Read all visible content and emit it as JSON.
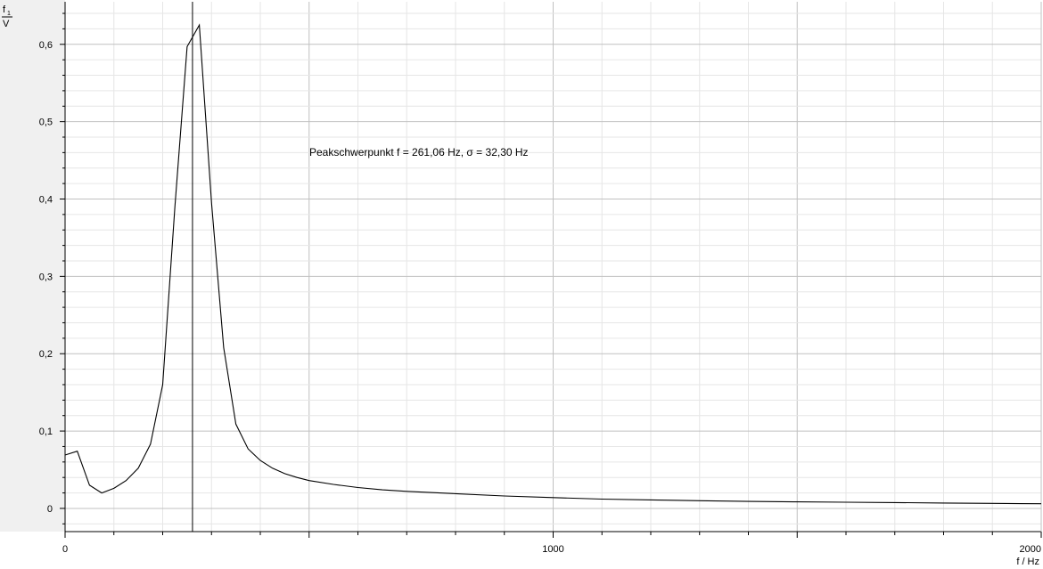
{
  "chart_data": {
    "type": "line",
    "title": "",
    "ylabel": {
      "numerator": "f",
      "subscript": "1",
      "denominator": "V"
    },
    "xlabel": "f / Hz",
    "xlim": [
      0,
      2000
    ],
    "ylim": [
      -0.03,
      0.655
    ],
    "x_ticks": [
      0,
      1000,
      2000
    ],
    "x_tick_labels": [
      "0",
      "1000",
      "2000"
    ],
    "y_ticks": [
      0,
      0.1,
      0.2,
      0.3,
      0.4,
      0.5,
      0.6
    ],
    "y_tick_labels": [
      "0",
      "0,1",
      "0,2",
      "0,3",
      "0,4",
      "0,5",
      "0,6"
    ],
    "grid": true,
    "marker_x": 261.06,
    "annotation": "Peakschwerpunkt f =  261,06 Hz,   σ = 32,30 Hz",
    "series": [
      {
        "x": [
          0,
          25,
          50,
          75,
          100,
          125,
          150,
          175,
          200,
          225,
          250,
          275,
          300,
          325,
          350,
          375,
          400,
          425,
          450,
          475,
          500,
          550,
          600,
          650,
          700,
          800,
          900,
          1000,
          1100,
          1200,
          1300,
          1400,
          1500,
          1600,
          1700,
          1800,
          1900,
          2000
        ],
        "values": [
          0.069,
          0.074,
          0.03,
          0.02,
          0.026,
          0.036,
          0.052,
          0.083,
          0.16,
          0.39,
          0.597,
          0.625,
          0.395,
          0.208,
          0.109,
          0.077,
          0.062,
          0.052,
          0.045,
          0.04,
          0.036,
          0.031,
          0.027,
          0.024,
          0.022,
          0.019,
          0.016,
          0.014,
          0.012,
          0.011,
          0.01,
          0.009,
          0.0085,
          0.008,
          0.0075,
          0.007,
          0.0065,
          0.006
        ]
      }
    ]
  },
  "colors": {
    "background": "#ffffff",
    "left_margin": "#f0f0f0",
    "major_grid": "#c0c0c0",
    "minor_grid": "#e6e6e6",
    "line": "#000000",
    "axis": "#000000"
  }
}
